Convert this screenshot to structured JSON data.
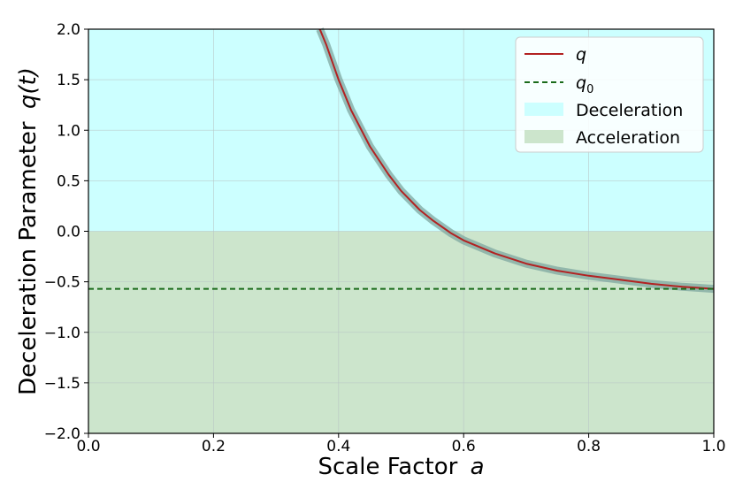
{
  "chart_data": {
    "type": "line",
    "xlabel_text": "Scale Factor",
    "xlabel_var": "a",
    "ylabel_text": "Deceleration Parameter",
    "ylabel_var": "q(t)",
    "xlim": [
      0.0,
      1.0
    ],
    "ylim": [
      -2.0,
      2.0
    ],
    "x_ticks": [
      "0.0",
      "0.2",
      "0.4",
      "0.6",
      "0.8",
      "1.0"
    ],
    "y_ticks": [
      "2.0",
      "1.5",
      "1.0",
      "0.5",
      "0.0",
      "−0.5",
      "−1.0",
      "−1.5",
      "−2.0"
    ],
    "grid": true,
    "legend_position": "top-right",
    "series": [
      {
        "name": "q",
        "style": "solid",
        "color": "#b22222",
        "band_color": "#7fa7a0",
        "x": [
          0.37,
          0.38,
          0.4,
          0.42,
          0.45,
          0.48,
          0.5,
          0.53,
          0.55,
          0.58,
          0.6,
          0.65,
          0.7,
          0.75,
          0.8,
          0.85,
          0.9,
          0.95,
          1.0
        ],
        "y": [
          2.0,
          1.85,
          1.5,
          1.2,
          0.84,
          0.56,
          0.4,
          0.21,
          0.11,
          -0.02,
          -0.09,
          -0.22,
          -0.32,
          -0.39,
          -0.44,
          -0.48,
          -0.52,
          -0.55,
          -0.57
        ]
      },
      {
        "name": "q₀",
        "name_base": "q",
        "name_sub": "0",
        "style": "dashed",
        "color": "#1a6b1a",
        "y_const": -0.57
      }
    ],
    "regions": [
      {
        "name": "Deceleration",
        "y_from": 0.0,
        "y_to": 2.0,
        "color": "#ccffff"
      },
      {
        "name": "Acceleration",
        "y_from": -2.0,
        "y_to": 0.0,
        "color": "#cce5cc"
      }
    ]
  }
}
